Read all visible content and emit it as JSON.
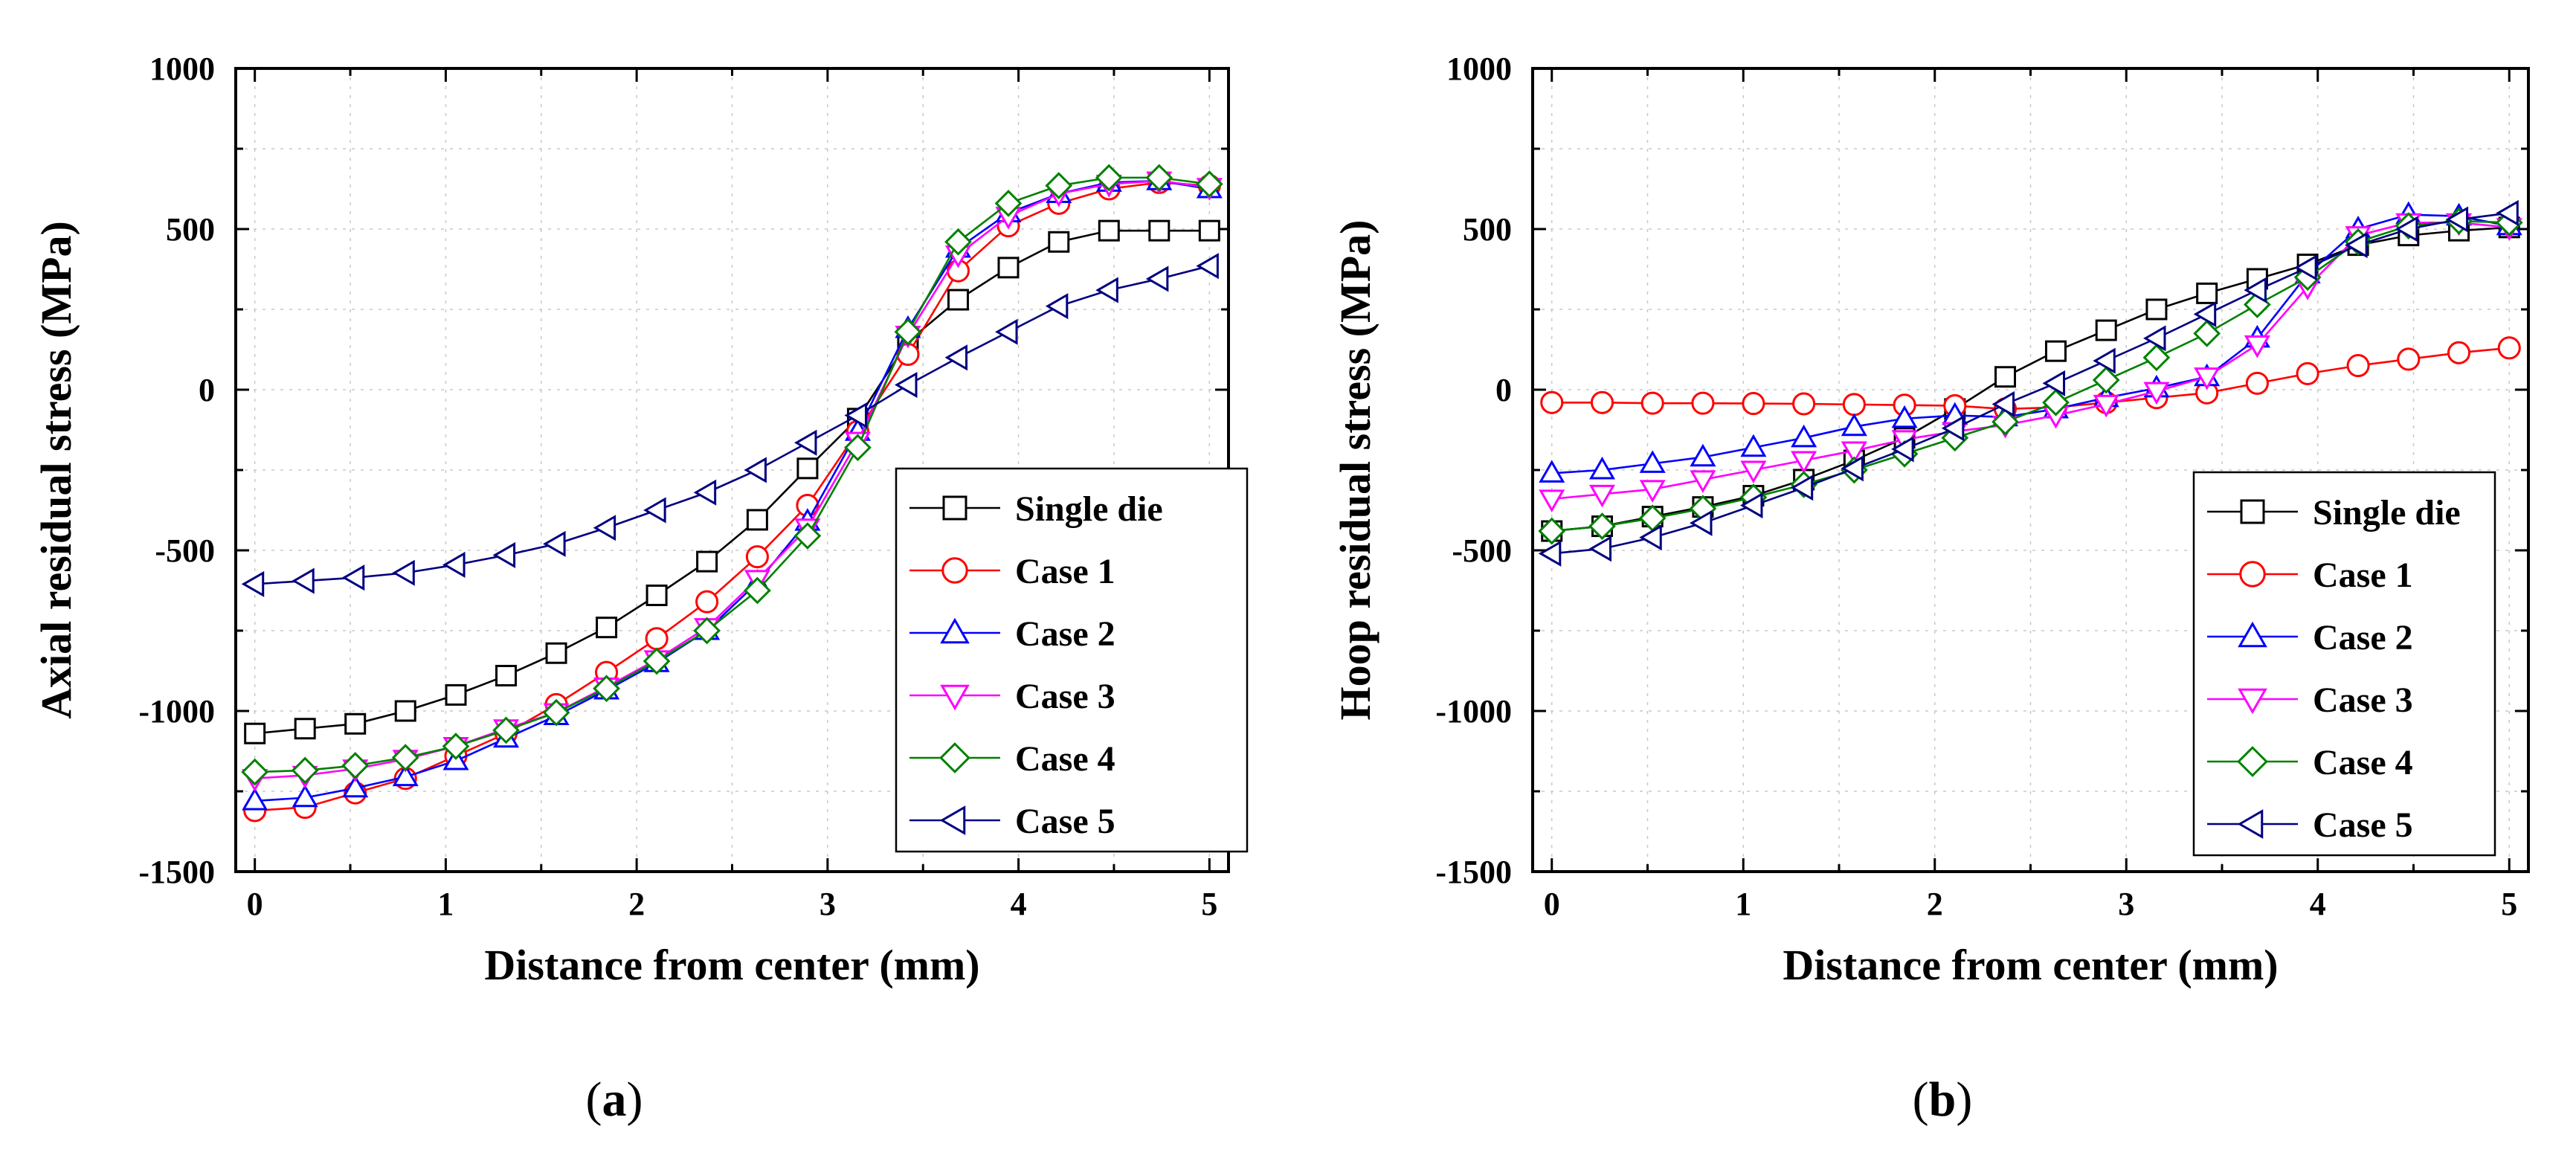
{
  "chart_data": [
    {
      "type": "line",
      "panel_label": "(a)",
      "panel_letter": "a",
      "xlabel": "Distance from center (mm)",
      "ylabel": "Axial residual stress (MPa)",
      "xlim": [
        -0.1,
        5.1
      ],
      "ylim": [
        -1500,
        1000
      ],
      "xticks": [
        0,
        1,
        2,
        3,
        4,
        5
      ],
      "yticks": [
        -1500,
        -1000,
        -500,
        0,
        500,
        1000
      ],
      "grid": true,
      "legend_position": "bottom-right",
      "x": [
        0,
        0.263,
        0.526,
        0.789,
        1.053,
        1.316,
        1.579,
        1.842,
        2.105,
        2.368,
        2.632,
        2.895,
        3.158,
        3.421,
        3.684,
        3.947,
        4.211,
        4.474,
        4.737,
        5.0
      ],
      "series": [
        {
          "name": "Single die",
          "color": "#000000",
          "marker": "square",
          "values": [
            -1070,
            -1055,
            -1040,
            -1000,
            -950,
            -890,
            -820,
            -740,
            -640,
            -535,
            -405,
            -245,
            -90,
            150,
            280,
            380,
            460,
            495,
            495,
            495
          ]
        },
        {
          "name": "Case 1",
          "color": "#ff0000",
          "marker": "circle",
          "values": [
            -1310,
            -1300,
            -1255,
            -1210,
            -1140,
            -1070,
            -980,
            -880,
            -775,
            -660,
            -520,
            -360,
            -130,
            110,
            370,
            510,
            580,
            625,
            645,
            635
          ]
        },
        {
          "name": "Case 2",
          "color": "#0000ff",
          "marker": "triangle-up",
          "values": [
            -1280,
            -1270,
            -1240,
            -1205,
            -1155,
            -1085,
            -1015,
            -935,
            -850,
            -750,
            -600,
            -410,
            -130,
            190,
            440,
            550,
            610,
            645,
            650,
            625
          ]
        },
        {
          "name": "Case 3",
          "color": "#ff00ff",
          "marker": "triangle-down",
          "values": [
            -1210,
            -1200,
            -1180,
            -1150,
            -1110,
            -1055,
            -1005,
            -925,
            -840,
            -740,
            -590,
            -430,
            -160,
            170,
            420,
            540,
            610,
            640,
            650,
            630
          ]
        },
        {
          "name": "Case 4",
          "color": "#008000",
          "marker": "diamond",
          "values": [
            -1190,
            -1185,
            -1170,
            -1145,
            -1110,
            -1060,
            -1005,
            -930,
            -845,
            -750,
            -625,
            -455,
            -180,
            180,
            460,
            580,
            635,
            660,
            660,
            640
          ]
        },
        {
          "name": "Case 5",
          "color": "#000080",
          "marker": "triangle-left",
          "values": [
            -605,
            -595,
            -585,
            -570,
            -545,
            -515,
            -480,
            -430,
            -375,
            -320,
            -250,
            -165,
            -80,
            15,
            100,
            180,
            260,
            310,
            345,
            385
          ]
        }
      ]
    },
    {
      "type": "line",
      "panel_label": "(b)",
      "panel_letter": "b",
      "xlabel": "Distance from center (mm)",
      "ylabel": "Hoop residual stress (MPa)",
      "xlim": [
        -0.1,
        5.1
      ],
      "ylim": [
        -1500,
        1000
      ],
      "xticks": [
        0,
        1,
        2,
        3,
        4,
        5
      ],
      "yticks": [
        -1500,
        -1000,
        -500,
        0,
        500,
        1000
      ],
      "grid": true,
      "legend_position": "bottom-right",
      "x": [
        0,
        0.263,
        0.526,
        0.789,
        1.053,
        1.316,
        1.579,
        1.842,
        2.105,
        2.368,
        2.632,
        2.895,
        3.158,
        3.421,
        3.684,
        3.947,
        4.211,
        4.474,
        4.737,
        5.0
      ],
      "series": [
        {
          "name": "Single die",
          "color": "#000000",
          "marker": "square",
          "values": [
            -440,
            -425,
            -395,
            -365,
            -330,
            -280,
            -220,
            -150,
            -60,
            40,
            120,
            185,
            250,
            300,
            345,
            390,
            450,
            480,
            495,
            505
          ]
        },
        {
          "name": "Case 1",
          "color": "#ff0000",
          "marker": "circle",
          "values": [
            -40,
            -40,
            -42,
            -42,
            -43,
            -44,
            -46,
            -48,
            -50,
            -60,
            -55,
            -40,
            -25,
            -10,
            20,
            50,
            75,
            95,
            115,
            130
          ]
        },
        {
          "name": "Case 2",
          "color": "#0000ff",
          "marker": "triangle-up",
          "values": [
            -260,
            -250,
            -230,
            -210,
            -180,
            -150,
            -115,
            -90,
            -80,
            -85,
            -60,
            -25,
            5,
            40,
            160,
            360,
            500,
            545,
            540,
            510
          ]
        },
        {
          "name": "Case 3",
          "color": "#ff00ff",
          "marker": "triangle-down",
          "values": [
            -340,
            -325,
            -310,
            -280,
            -250,
            -220,
            -190,
            -155,
            -130,
            -110,
            -80,
            -45,
            -5,
            40,
            140,
            320,
            480,
            520,
            520,
            505
          ]
        },
        {
          "name": "Case 4",
          "color": "#008000",
          "marker": "diamond",
          "values": [
            -440,
            -425,
            -400,
            -370,
            -335,
            -295,
            -250,
            -200,
            -150,
            -100,
            -40,
            30,
            100,
            175,
            265,
            350,
            460,
            510,
            525,
            520
          ]
        },
        {
          "name": "Case 5",
          "color": "#000080",
          "marker": "triangle-left",
          "values": [
            -510,
            -495,
            -460,
            -415,
            -360,
            -305,
            -245,
            -185,
            -120,
            -45,
            20,
            90,
            160,
            235,
            310,
            380,
            450,
            500,
            530,
            550
          ]
        }
      ]
    }
  ]
}
